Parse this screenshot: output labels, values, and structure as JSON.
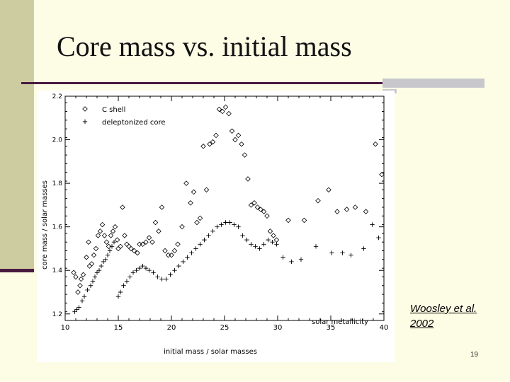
{
  "slide": {
    "title": "Core mass vs. initial mass",
    "credit_line1": "Woosley et al.",
    "credit_line2": "2002",
    "page_number": "19"
  },
  "colors": {
    "background": "#fdfde6",
    "accent": "#4a1a40",
    "band": "#cdcca0"
  },
  "chart_data": {
    "type": "scatter",
    "title": "",
    "xlabel": "initial mass / solar masses",
    "ylabel": "core mass / solar masses",
    "xlim": [
      10,
      40
    ],
    "ylim": [
      1.17,
      2.2
    ],
    "x_ticks": [
      10,
      15,
      20,
      25,
      30,
      35,
      40
    ],
    "y_ticks": [
      1.2,
      1.4,
      1.6,
      1.8,
      2.0,
      2.2
    ],
    "x_tick_labels": [
      "10",
      "15",
      "20",
      "25",
      "30",
      "35",
      "40"
    ],
    "y_tick_labels": [
      "1.2",
      "1.4",
      "1.6",
      "1.8",
      "2.0",
      "2.2"
    ],
    "legend": [
      {
        "name": "C shell",
        "marker": "diamond"
      },
      {
        "name": "deleptonized core",
        "marker": "plus"
      }
    ],
    "annotation": "solar metallicity",
    "series": [
      {
        "name": "C shell",
        "marker": "diamond",
        "points": [
          [
            10.8,
            1.39
          ],
          [
            11.0,
            1.37
          ],
          [
            11.2,
            1.3
          ],
          [
            11.4,
            1.33
          ],
          [
            11.5,
            1.36
          ],
          [
            11.7,
            1.38
          ],
          [
            12.0,
            1.46
          ],
          [
            12.2,
            1.53
          ],
          [
            12.3,
            1.42
          ],
          [
            12.5,
            1.43
          ],
          [
            12.7,
            1.47
          ],
          [
            12.9,
            1.5
          ],
          [
            13.1,
            1.56
          ],
          [
            13.3,
            1.58
          ],
          [
            13.5,
            1.61
          ],
          [
            13.7,
            1.56
          ],
          [
            13.9,
            1.53
          ],
          [
            14.1,
            1.51
          ],
          [
            14.3,
            1.56
          ],
          [
            14.5,
            1.58
          ],
          [
            14.7,
            1.6
          ],
          [
            14.9,
            1.54
          ],
          [
            15.0,
            1.5
          ],
          [
            15.2,
            1.51
          ],
          [
            15.4,
            1.69
          ],
          [
            15.6,
            1.56
          ],
          [
            15.8,
            1.52
          ],
          [
            16.0,
            1.51
          ],
          [
            16.2,
            1.5
          ],
          [
            16.5,
            1.49
          ],
          [
            16.8,
            1.48
          ],
          [
            17.0,
            1.52
          ],
          [
            17.3,
            1.52
          ],
          [
            17.6,
            1.53
          ],
          [
            17.9,
            1.55
          ],
          [
            18.2,
            1.53
          ],
          [
            18.5,
            1.62
          ],
          [
            18.8,
            1.58
          ],
          [
            19.1,
            1.69
          ],
          [
            19.4,
            1.49
          ],
          [
            19.7,
            1.47
          ],
          [
            20.0,
            1.47
          ],
          [
            20.3,
            1.49
          ],
          [
            20.6,
            1.52
          ],
          [
            21.0,
            1.6
          ],
          [
            21.4,
            1.8
          ],
          [
            21.8,
            1.71
          ],
          [
            22.1,
            1.76
          ],
          [
            22.4,
            1.62
          ],
          [
            22.7,
            1.64
          ],
          [
            23.0,
            1.97
          ],
          [
            23.3,
            1.77
          ],
          [
            23.6,
            1.98
          ],
          [
            23.9,
            1.99
          ],
          [
            24.2,
            2.02
          ],
          [
            24.5,
            2.14
          ],
          [
            24.8,
            2.13
          ],
          [
            25.1,
            2.15
          ],
          [
            25.4,
            2.12
          ],
          [
            25.7,
            2.04
          ],
          [
            26.0,
            2.0
          ],
          [
            26.3,
            2.02
          ],
          [
            26.6,
            1.98
          ],
          [
            26.9,
            1.93
          ],
          [
            27.2,
            1.82
          ],
          [
            27.5,
            1.7
          ],
          [
            27.8,
            1.71
          ],
          [
            28.1,
            1.69
          ],
          [
            28.4,
            1.68
          ],
          [
            28.7,
            1.67
          ],
          [
            29.0,
            1.65
          ],
          [
            29.3,
            1.58
          ],
          [
            29.6,
            1.56
          ],
          [
            29.9,
            1.54
          ],
          [
            31.0,
            1.63
          ],
          [
            32.5,
            1.63
          ],
          [
            33.8,
            1.72
          ],
          [
            34.8,
            1.77
          ],
          [
            35.6,
            1.67
          ],
          [
            36.5,
            1.68
          ],
          [
            37.3,
            1.69
          ],
          [
            38.3,
            1.67
          ],
          [
            39.2,
            1.98
          ],
          [
            39.8,
            1.84
          ]
        ]
      },
      {
        "name": "deleptonized core",
        "marker": "plus",
        "points": [
          [
            10.9,
            1.21
          ],
          [
            11.1,
            1.22
          ],
          [
            11.3,
            1.23
          ],
          [
            11.6,
            1.26
          ],
          [
            11.8,
            1.28
          ],
          [
            12.1,
            1.31
          ],
          [
            12.4,
            1.33
          ],
          [
            12.6,
            1.35
          ],
          [
            12.8,
            1.37
          ],
          [
            13.0,
            1.39
          ],
          [
            13.2,
            1.4
          ],
          [
            13.4,
            1.42
          ],
          [
            13.6,
            1.44
          ],
          [
            13.8,
            1.45
          ],
          [
            14.0,
            1.47
          ],
          [
            14.2,
            1.49
          ],
          [
            14.4,
            1.51
          ],
          [
            14.6,
            1.53
          ],
          [
            15.0,
            1.28
          ],
          [
            15.2,
            1.3
          ],
          [
            15.5,
            1.33
          ],
          [
            15.8,
            1.35
          ],
          [
            16.1,
            1.37
          ],
          [
            16.4,
            1.39
          ],
          [
            16.7,
            1.4
          ],
          [
            17.0,
            1.41
          ],
          [
            17.3,
            1.42
          ],
          [
            17.6,
            1.41
          ],
          [
            17.9,
            1.4
          ],
          [
            18.3,
            1.39
          ],
          [
            18.7,
            1.37
          ],
          [
            19.1,
            1.36
          ],
          [
            19.5,
            1.36
          ],
          [
            19.9,
            1.38
          ],
          [
            20.3,
            1.4
          ],
          [
            20.7,
            1.42
          ],
          [
            21.1,
            1.44
          ],
          [
            21.5,
            1.46
          ],
          [
            21.9,
            1.48
          ],
          [
            22.3,
            1.5
          ],
          [
            22.7,
            1.52
          ],
          [
            23.1,
            1.54
          ],
          [
            23.5,
            1.56
          ],
          [
            23.9,
            1.58
          ],
          [
            24.3,
            1.6
          ],
          [
            24.7,
            1.61
          ],
          [
            25.1,
            1.62
          ],
          [
            25.5,
            1.62
          ],
          [
            25.9,
            1.61
          ],
          [
            26.3,
            1.6
          ],
          [
            26.7,
            1.56
          ],
          [
            27.1,
            1.54
          ],
          [
            27.5,
            1.52
          ],
          [
            27.9,
            1.51
          ],
          [
            28.3,
            1.5
          ],
          [
            28.7,
            1.52
          ],
          [
            29.1,
            1.54
          ],
          [
            29.5,
            1.53
          ],
          [
            29.9,
            1.52
          ],
          [
            30.5,
            1.46
          ],
          [
            31.3,
            1.44
          ],
          [
            32.2,
            1.45
          ],
          [
            33.6,
            1.51
          ],
          [
            35.1,
            1.48
          ],
          [
            36.1,
            1.48
          ],
          [
            36.9,
            1.47
          ],
          [
            38.1,
            1.5
          ],
          [
            38.9,
            1.61
          ],
          [
            39.5,
            1.55
          ]
        ]
      }
    ]
  }
}
